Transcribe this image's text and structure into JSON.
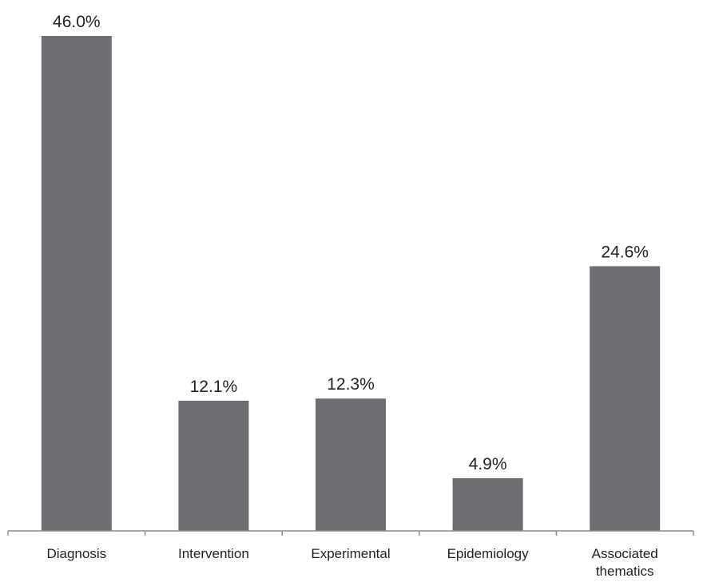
{
  "chart_data": {
    "type": "bar",
    "categories": [
      "Diagnosis",
      "Intervention",
      "Experimental",
      "Epidemiology",
      "Associated thematics"
    ],
    "category_lines": [
      [
        "Diagnosis"
      ],
      [
        "Intervention"
      ],
      [
        "Experimental"
      ],
      [
        "Epidemiology"
      ],
      [
        "Associated",
        "thematics"
      ]
    ],
    "values": [
      46.0,
      12.1,
      12.3,
      4.9,
      24.6
    ],
    "data_labels": [
      "46.0%",
      "12.1%",
      "12.3%",
      "4.9%",
      "24.6%"
    ],
    "title": "",
    "xlabel": "",
    "ylabel": "",
    "ylim": [
      0,
      46.0
    ],
    "grid": false,
    "legend": "none",
    "bar_color": "#6d6e71",
    "axis_color": "#8c8c8c",
    "text_color": "#222222"
  }
}
